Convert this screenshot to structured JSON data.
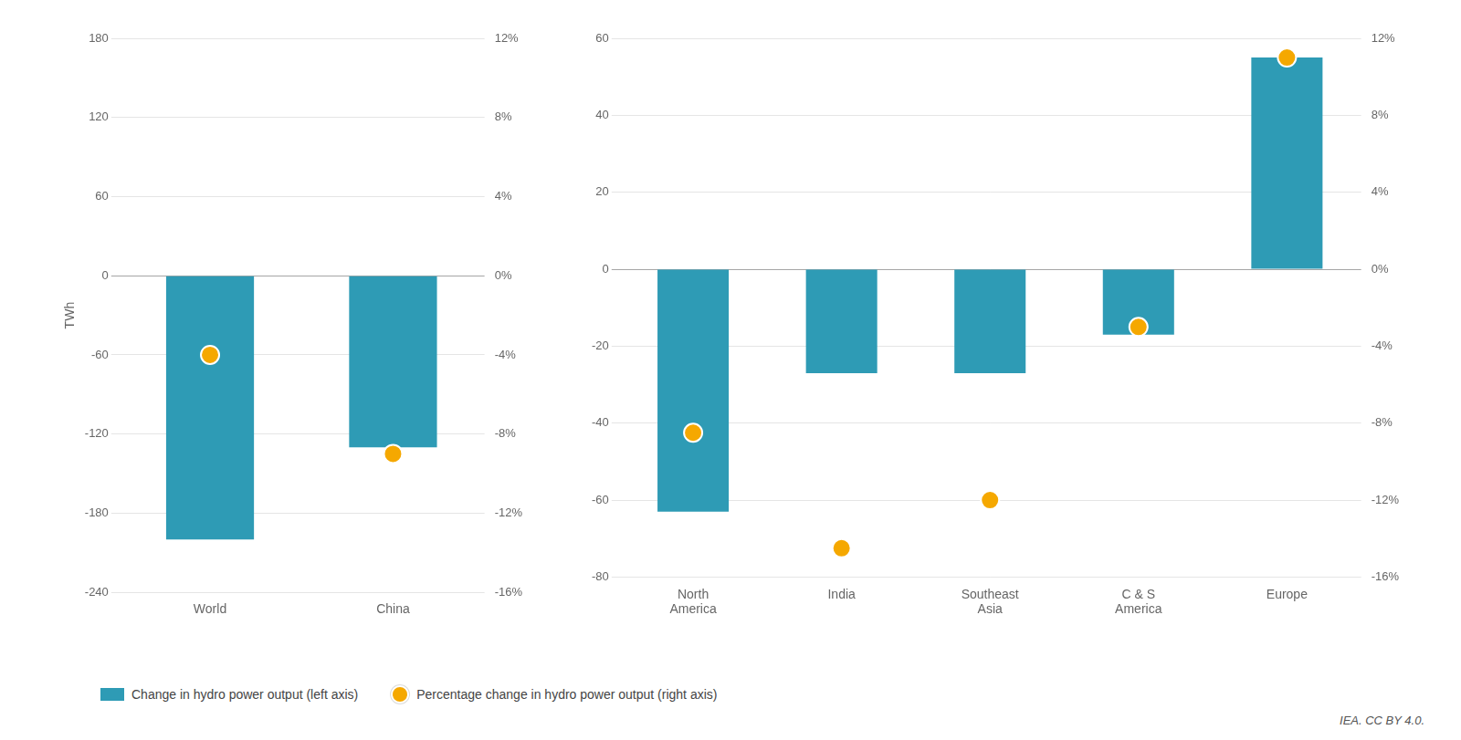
{
  "chart_data": [
    {
      "type": "bar",
      "categories": [
        "World",
        "China"
      ],
      "y_label": "TWh",
      "series": [
        {
          "name": "Change in hydro power output (left axis)",
          "type": "bar",
          "color": "#2E9BB5",
          "values": [
            -200,
            -130
          ]
        },
        {
          "name": "Percentage change in hydro power output (right axis)",
          "type": "scatter",
          "marker": "circle",
          "axis": "y2",
          "color": "#F5A800",
          "values": [
            -4.0,
            -9.0
          ]
        }
      ],
      "ylim": [
        -240,
        180
      ],
      "yticks": [
        -240,
        -180,
        -120,
        -60,
        0,
        60,
        120,
        180
      ],
      "y2lim": [
        -16,
        12
      ],
      "y2ticks": [
        {
          "value": -16,
          "label": "-16%"
        },
        {
          "value": -12,
          "label": "-12%"
        },
        {
          "value": -8,
          "label": "-8%"
        },
        {
          "value": -4,
          "label": "-4%"
        },
        {
          "value": 0,
          "label": "0%"
        },
        {
          "value": 4,
          "label": "4%"
        },
        {
          "value": 8,
          "label": "8%"
        },
        {
          "value": 12,
          "label": "12%"
        }
      ],
      "grid": true,
      "legend": "lower left"
    },
    {
      "type": "bar",
      "categories": [
        "North\nAmerica",
        "India",
        "Southeast\nAsia",
        "C & S\nAmerica",
        "Europe"
      ],
      "series": [
        {
          "name": "Change in hydro power output (left axis)",
          "type": "bar",
          "color": "#2E9BB5",
          "values": [
            -63,
            -27,
            -27,
            -17,
            55
          ]
        },
        {
          "name": "Percentage change in hydro power output (right axis)",
          "type": "scatter",
          "marker": "circle",
          "axis": "y2",
          "color": "#F5A800",
          "values": [
            -8.5,
            -14.5,
            -12.0,
            -3.0,
            11.0
          ]
        }
      ],
      "ylim": [
        -80,
        60
      ],
      "yticks": [
        -80,
        -60,
        -40,
        -20,
        0,
        20,
        40,
        60
      ],
      "y2lim": [
        -16,
        12
      ],
      "y2ticks": [
        {
          "value": -16,
          "label": "-16%"
        },
        {
          "value": -12,
          "label": "-12%"
        },
        {
          "value": -8,
          "label": "-8%"
        },
        {
          "value": -4,
          "label": "-4%"
        },
        {
          "value": 0,
          "label": "0%"
        },
        {
          "value": 4,
          "label": "4%"
        },
        {
          "value": 8,
          "label": "8%"
        },
        {
          "value": 12,
          "label": "12%"
        }
      ],
      "grid": true,
      "annotations": [
        "IEA. CC BY 4.0."
      ]
    }
  ]
}
